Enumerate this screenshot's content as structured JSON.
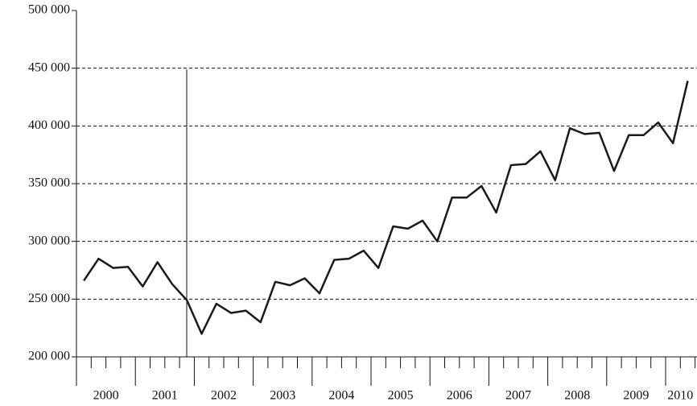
{
  "chart_data": {
    "type": "line",
    "year_labels": [
      "2000",
      "2001",
      "2002",
      "2003",
      "2004",
      "2005",
      "2006",
      "2007",
      "2008",
      "2009",
      "2010"
    ],
    "values": [
      266000,
      285000,
      277000,
      278000,
      261000,
      282000,
      263000,
      249000,
      220000,
      246000,
      238000,
      240000,
      230000,
      265000,
      262000,
      268000,
      255000,
      284000,
      285000,
      292000,
      277000,
      313000,
      311000,
      318000,
      300000,
      338000,
      338000,
      348000,
      325000,
      366000,
      367000,
      378000,
      353000,
      398000,
      393000,
      394000,
      361000,
      392000,
      392000,
      403000,
      385000,
      439000
    ],
    "color": "#1a1a1a",
    "ylim": [
      200000,
      500000
    ],
    "yticks": [
      {
        "value": 200000,
        "label": "200 000"
      },
      {
        "value": 250000,
        "label": "250 000"
      },
      {
        "value": 300000,
        "label": "300 000"
      },
      {
        "value": 350000,
        "label": "350 000"
      },
      {
        "value": 400000,
        "label": "400 000"
      },
      {
        "value": 450000,
        "label": "450 000"
      },
      {
        "value": 500000,
        "label": "500 000"
      }
    ],
    "grid": true
  }
}
